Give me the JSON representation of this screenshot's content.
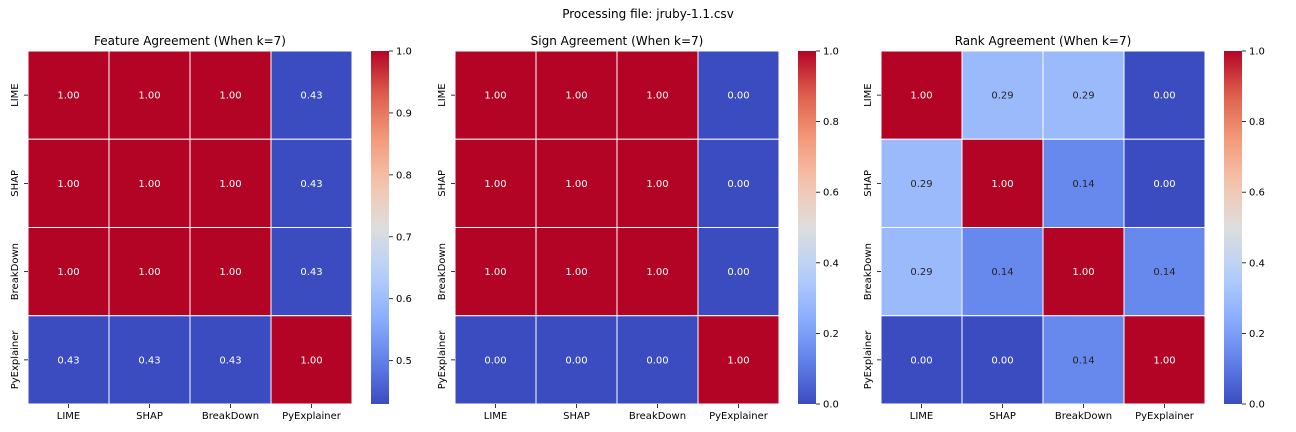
{
  "suptitle": "Processing file: jruby-1.1.csv",
  "chart_data": [
    {
      "type": "heatmap",
      "title": "Feature Agreement (When k=7)",
      "x_labels": [
        "LIME",
        "SHAP",
        "BreakDown",
        "PyExplainer"
      ],
      "y_labels": [
        "LIME",
        "SHAP",
        "BreakDown",
        "PyExplainer"
      ],
      "values": [
        [
          1.0,
          1.0,
          1.0,
          0.43
        ],
        [
          1.0,
          1.0,
          1.0,
          0.43
        ],
        [
          1.0,
          1.0,
          1.0,
          0.43
        ],
        [
          0.43,
          0.43,
          0.43,
          1.0
        ]
      ],
      "colorbar": {
        "min": 0.43,
        "max": 1.0,
        "ticks": [
          0.5,
          0.6,
          0.7,
          0.8,
          0.9,
          1.0
        ],
        "tick_labels": [
          "0.5",
          "0.6",
          "0.7",
          "0.8",
          "0.9",
          "1.0"
        ]
      },
      "colormap": "coolwarm"
    },
    {
      "type": "heatmap",
      "title": "Sign Agreement (When k=7)",
      "x_labels": [
        "LIME",
        "SHAP",
        "BreakDown",
        "PyExplainer"
      ],
      "y_labels": [
        "LIME",
        "SHAP",
        "BreakDown",
        "PyExplainer"
      ],
      "values": [
        [
          1.0,
          1.0,
          1.0,
          0.0
        ],
        [
          1.0,
          1.0,
          1.0,
          0.0
        ],
        [
          1.0,
          1.0,
          1.0,
          0.0
        ],
        [
          0.0,
          0.0,
          0.0,
          1.0
        ]
      ],
      "colorbar": {
        "min": 0.0,
        "max": 1.0,
        "ticks": [
          0.0,
          0.2,
          0.4,
          0.6,
          0.8,
          1.0
        ],
        "tick_labels": [
          "0.0",
          "0.2",
          "0.4",
          "0.6",
          "0.8",
          "1.0"
        ]
      },
      "colormap": "coolwarm"
    },
    {
      "type": "heatmap",
      "title": "Rank Agreement (When k=7)",
      "x_labels": [
        "LIME",
        "SHAP",
        "BreakDown",
        "PyExplainer"
      ],
      "y_labels": [
        "LIME",
        "SHAP",
        "BreakDown",
        "PyExplainer"
      ],
      "values": [
        [
          1.0,
          0.29,
          0.29,
          0.0
        ],
        [
          0.29,
          1.0,
          0.14,
          0.0
        ],
        [
          0.29,
          0.14,
          1.0,
          0.14
        ],
        [
          0.0,
          0.0,
          0.14,
          1.0
        ]
      ],
      "colorbar": {
        "min": 0.0,
        "max": 1.0,
        "ticks": [
          0.0,
          0.2,
          0.4,
          0.6,
          0.8,
          1.0
        ],
        "tick_labels": [
          "0.0",
          "0.2",
          "0.4",
          "0.6",
          "0.8",
          "1.0"
        ]
      },
      "colormap": "coolwarm"
    }
  ]
}
